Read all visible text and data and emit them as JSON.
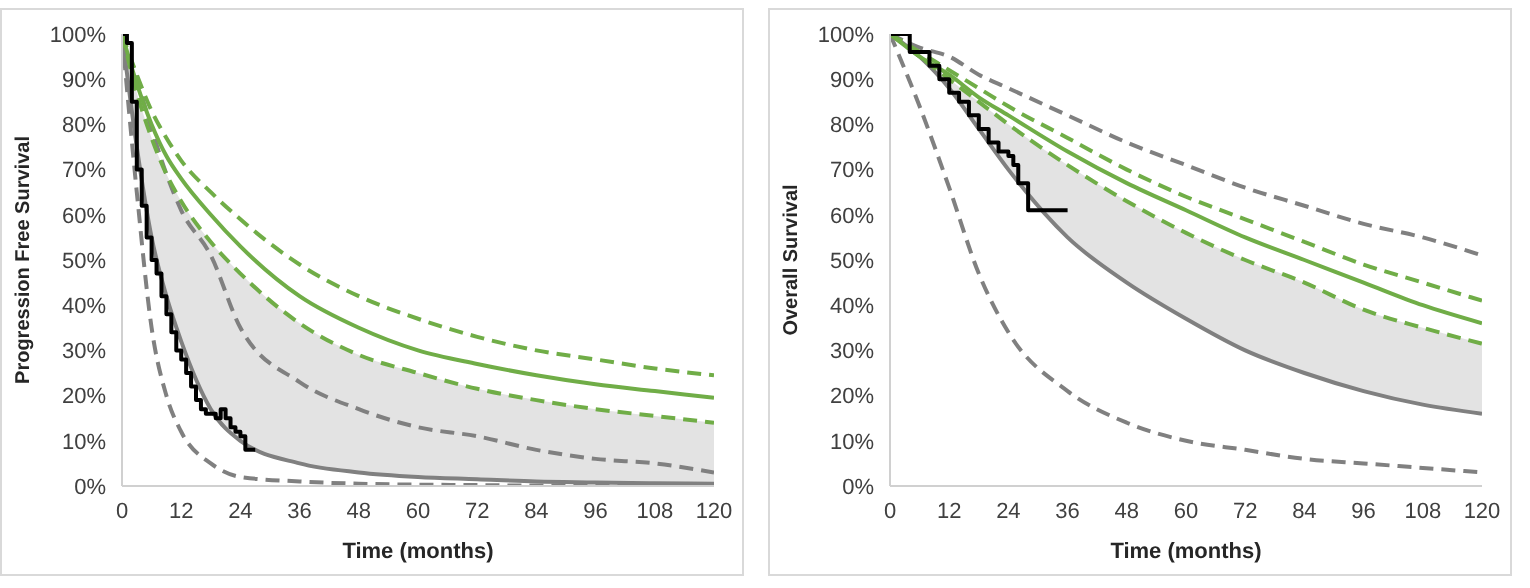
{
  "chart_data": [
    {
      "type": "line",
      "xlabel": "Time (months)",
      "ylabel": "Progression Free Survival",
      "xlim": [
        0,
        120
      ],
      "xticks": [
        0,
        12,
        24,
        36,
        48,
        60,
        72,
        84,
        96,
        108,
        120
      ],
      "ylim": [
        0,
        100
      ],
      "yticks": [
        {
          "value": 0,
          "label": "0%"
        },
        {
          "value": 10,
          "label": "10%"
        },
        {
          "value": 20,
          "label": "20%"
        },
        {
          "value": 30,
          "label": "30%"
        },
        {
          "value": 40,
          "label": "40%"
        },
        {
          "value": 50,
          "label": "50%"
        },
        {
          "value": 60,
          "label": "60%"
        },
        {
          "value": 70,
          "label": "70%"
        },
        {
          "value": 80,
          "label": "80%"
        },
        {
          "value": 90,
          "label": "90%"
        },
        {
          "value": 100,
          "label": "100%"
        }
      ],
      "grid": false,
      "marker": "none",
      "series": [
        {
          "type": "line",
          "color": "#808080",
          "line_style": "dashed",
          "x": [
            0,
            3,
            6,
            9,
            12,
            18,
            24,
            36,
            48,
            60,
            72,
            84,
            96,
            108,
            120
          ],
          "values": [
            100,
            65,
            35,
            20,
            12,
            5,
            2,
            1,
            0.5,
            0.3,
            0.2,
            0.1,
            0.1,
            0.1,
            0.1
          ]
        },
        {
          "type": "line",
          "color": "#808080",
          "line_style": "dashed",
          "x": [
            0,
            3,
            6,
            9,
            12,
            18,
            24,
            36,
            48,
            60,
            72,
            84,
            96,
            108,
            120
          ],
          "values": [
            100,
            90,
            79,
            69,
            61,
            51,
            35,
            23,
            17,
            13,
            11,
            8,
            6,
            5,
            3
          ]
        },
        {
          "type": "line",
          "color": "#808080",
          "line_style": "solid",
          "x": [
            0,
            3,
            6,
            9,
            12,
            18,
            24,
            36,
            48,
            60,
            72,
            84,
            96,
            108,
            120
          ],
          "values": [
            100,
            75,
            55,
            42,
            32,
            17,
            10,
            5,
            3,
            2,
            1.5,
            1,
            0.8,
            0.6,
            0.5
          ],
          "lower": [
            100,
            75,
            55,
            42,
            32,
            17,
            10,
            5,
            3,
            2,
            1.5,
            1,
            0.8,
            0.6,
            0.5
          ],
          "upper": [
            100,
            87,
            77,
            69,
            63,
            54,
            47,
            36,
            29,
            25,
            21.5,
            19,
            17,
            15.5,
            14
          ]
        },
        {
          "type": "line",
          "color": "#70ad47",
          "line_style": "dashed",
          "x": [
            0,
            3,
            6,
            9,
            12,
            18,
            24,
            36,
            48,
            60,
            72,
            84,
            96,
            108,
            120
          ],
          "values": [
            100,
            91,
            83,
            77,
            72,
            65,
            59,
            49,
            42,
            37,
            33,
            30,
            28,
            26,
            24.5
          ]
        },
        {
          "type": "line",
          "color": "#70ad47",
          "line_style": "dashed",
          "x": [
            0,
            3,
            6,
            9,
            12,
            18,
            24,
            36,
            48,
            60,
            72,
            84,
            96,
            108,
            120
          ],
          "values": [
            100,
            87,
            77,
            69,
            63,
            54,
            47,
            36,
            29,
            25,
            21.5,
            19,
            17,
            15.5,
            14
          ]
        },
        {
          "type": "line",
          "color": "#70ad47",
          "line_style": "solid",
          "x": [
            0,
            3,
            6,
            9,
            12,
            18,
            24,
            36,
            48,
            60,
            72,
            84,
            96,
            108,
            120
          ],
          "values": [
            100,
            89,
            80,
            73,
            68,
            60,
            53,
            42,
            35,
            30,
            27,
            24.5,
            22.5,
            21,
            19.5
          ]
        },
        {
          "type": "step",
          "color": "#000000",
          "line_style": "solid",
          "x": [
            0,
            1,
            2,
            3,
            4,
            5,
            6,
            7,
            8,
            9,
            10,
            11,
            12,
            13,
            14,
            15,
            16,
            17,
            18,
            19,
            20,
            21,
            22,
            23,
            24,
            25,
            26,
            27
          ],
          "values": [
            100,
            98,
            85,
            70,
            62,
            55,
            50,
            47,
            42,
            38,
            34,
            30,
            28,
            25,
            22,
            19,
            17,
            16,
            16,
            15,
            17,
            15,
            13,
            12,
            11,
            8,
            8,
            8
          ]
        }
      ]
    },
    {
      "type": "line",
      "xlabel": "Time (months)",
      "ylabel": "Overall Survival",
      "xlim": [
        0,
        120
      ],
      "xticks": [
        0,
        12,
        24,
        36,
        48,
        60,
        72,
        84,
        96,
        108,
        120
      ],
      "ylim": [
        0,
        100
      ],
      "yticks": [
        {
          "value": 0,
          "label": "0%"
        },
        {
          "value": 10,
          "label": "10%"
        },
        {
          "value": 20,
          "label": "20%"
        },
        {
          "value": 30,
          "label": "30%"
        },
        {
          "value": 40,
          "label": "40%"
        },
        {
          "value": 50,
          "label": "50%"
        },
        {
          "value": 60,
          "label": "60%"
        },
        {
          "value": 70,
          "label": "70%"
        },
        {
          "value": 80,
          "label": "80%"
        },
        {
          "value": 90,
          "label": "90%"
        },
        {
          "value": 100,
          "label": "100%"
        }
      ],
      "grid": false,
      "marker": "none",
      "series": [
        {
          "type": "line",
          "color": "#808080",
          "line_style": "dashed",
          "x": [
            0,
            6,
            12,
            18,
            24,
            36,
            48,
            60,
            72,
            84,
            96,
            108,
            120
          ],
          "values": [
            100,
            84,
            66,
            47,
            34,
            21,
            14,
            10,
            8,
            6,
            5,
            4,
            3
          ]
        },
        {
          "type": "line",
          "color": "#808080",
          "line_style": "dashed",
          "x": [
            0,
            6,
            12,
            18,
            24,
            36,
            48,
            60,
            72,
            84,
            96,
            108,
            120
          ],
          "values": [
            100,
            97,
            95,
            91,
            88,
            82,
            76,
            71,
            66,
            62,
            58,
            55,
            51
          ]
        },
        {
          "type": "line",
          "color": "#808080",
          "line_style": "solid",
          "x": [
            0,
            6,
            12,
            18,
            24,
            36,
            48,
            60,
            72,
            84,
            96,
            108,
            120
          ],
          "values": [
            100,
            95,
            88,
            79,
            70,
            55,
            45,
            37,
            30,
            25,
            21,
            18,
            16
          ],
          "lower": [
            100,
            95,
            88,
            79,
            70,
            55,
            45,
            37,
            30,
            25,
            21,
            18,
            16
          ],
          "upper": [
            100,
            95,
            90,
            85,
            80,
            71,
            63,
            56,
            50,
            45,
            39,
            35,
            31.5
          ]
        },
        {
          "type": "line",
          "color": "#70ad47",
          "line_style": "dashed",
          "x": [
            0,
            6,
            12,
            18,
            24,
            36,
            48,
            60,
            72,
            84,
            96,
            108,
            120
          ],
          "values": [
            100,
            96,
            92,
            88,
            84,
            77,
            70,
            64,
            59,
            54,
            49,
            45,
            41
          ]
        },
        {
          "type": "line",
          "color": "#70ad47",
          "line_style": "dashed",
          "x": [
            0,
            6,
            12,
            18,
            24,
            36,
            48,
            60,
            72,
            84,
            96,
            108,
            120
          ],
          "values": [
            100,
            95,
            90,
            85,
            80,
            71,
            63,
            56,
            50,
            45,
            39,
            35,
            31.5
          ]
        },
        {
          "type": "line",
          "color": "#70ad47",
          "line_style": "solid",
          "x": [
            0,
            6,
            12,
            18,
            24,
            36,
            48,
            60,
            72,
            84,
            96,
            108,
            120
          ],
          "values": [
            100,
            95,
            91,
            86,
            82,
            74,
            67,
            61,
            55,
            50,
            45,
            40,
            36
          ]
        },
        {
          "type": "step",
          "color": "#000000",
          "line_style": "solid",
          "x": [
            0,
            4,
            8,
            10,
            12,
            14,
            16,
            18,
            20,
            22,
            24,
            25,
            26,
            27,
            28,
            36
          ],
          "values": [
            100,
            96,
            93,
            90,
            87,
            85,
            82,
            79,
            76,
            74,
            73,
            71,
            67,
            67,
            61,
            61
          ]
        }
      ]
    }
  ]
}
